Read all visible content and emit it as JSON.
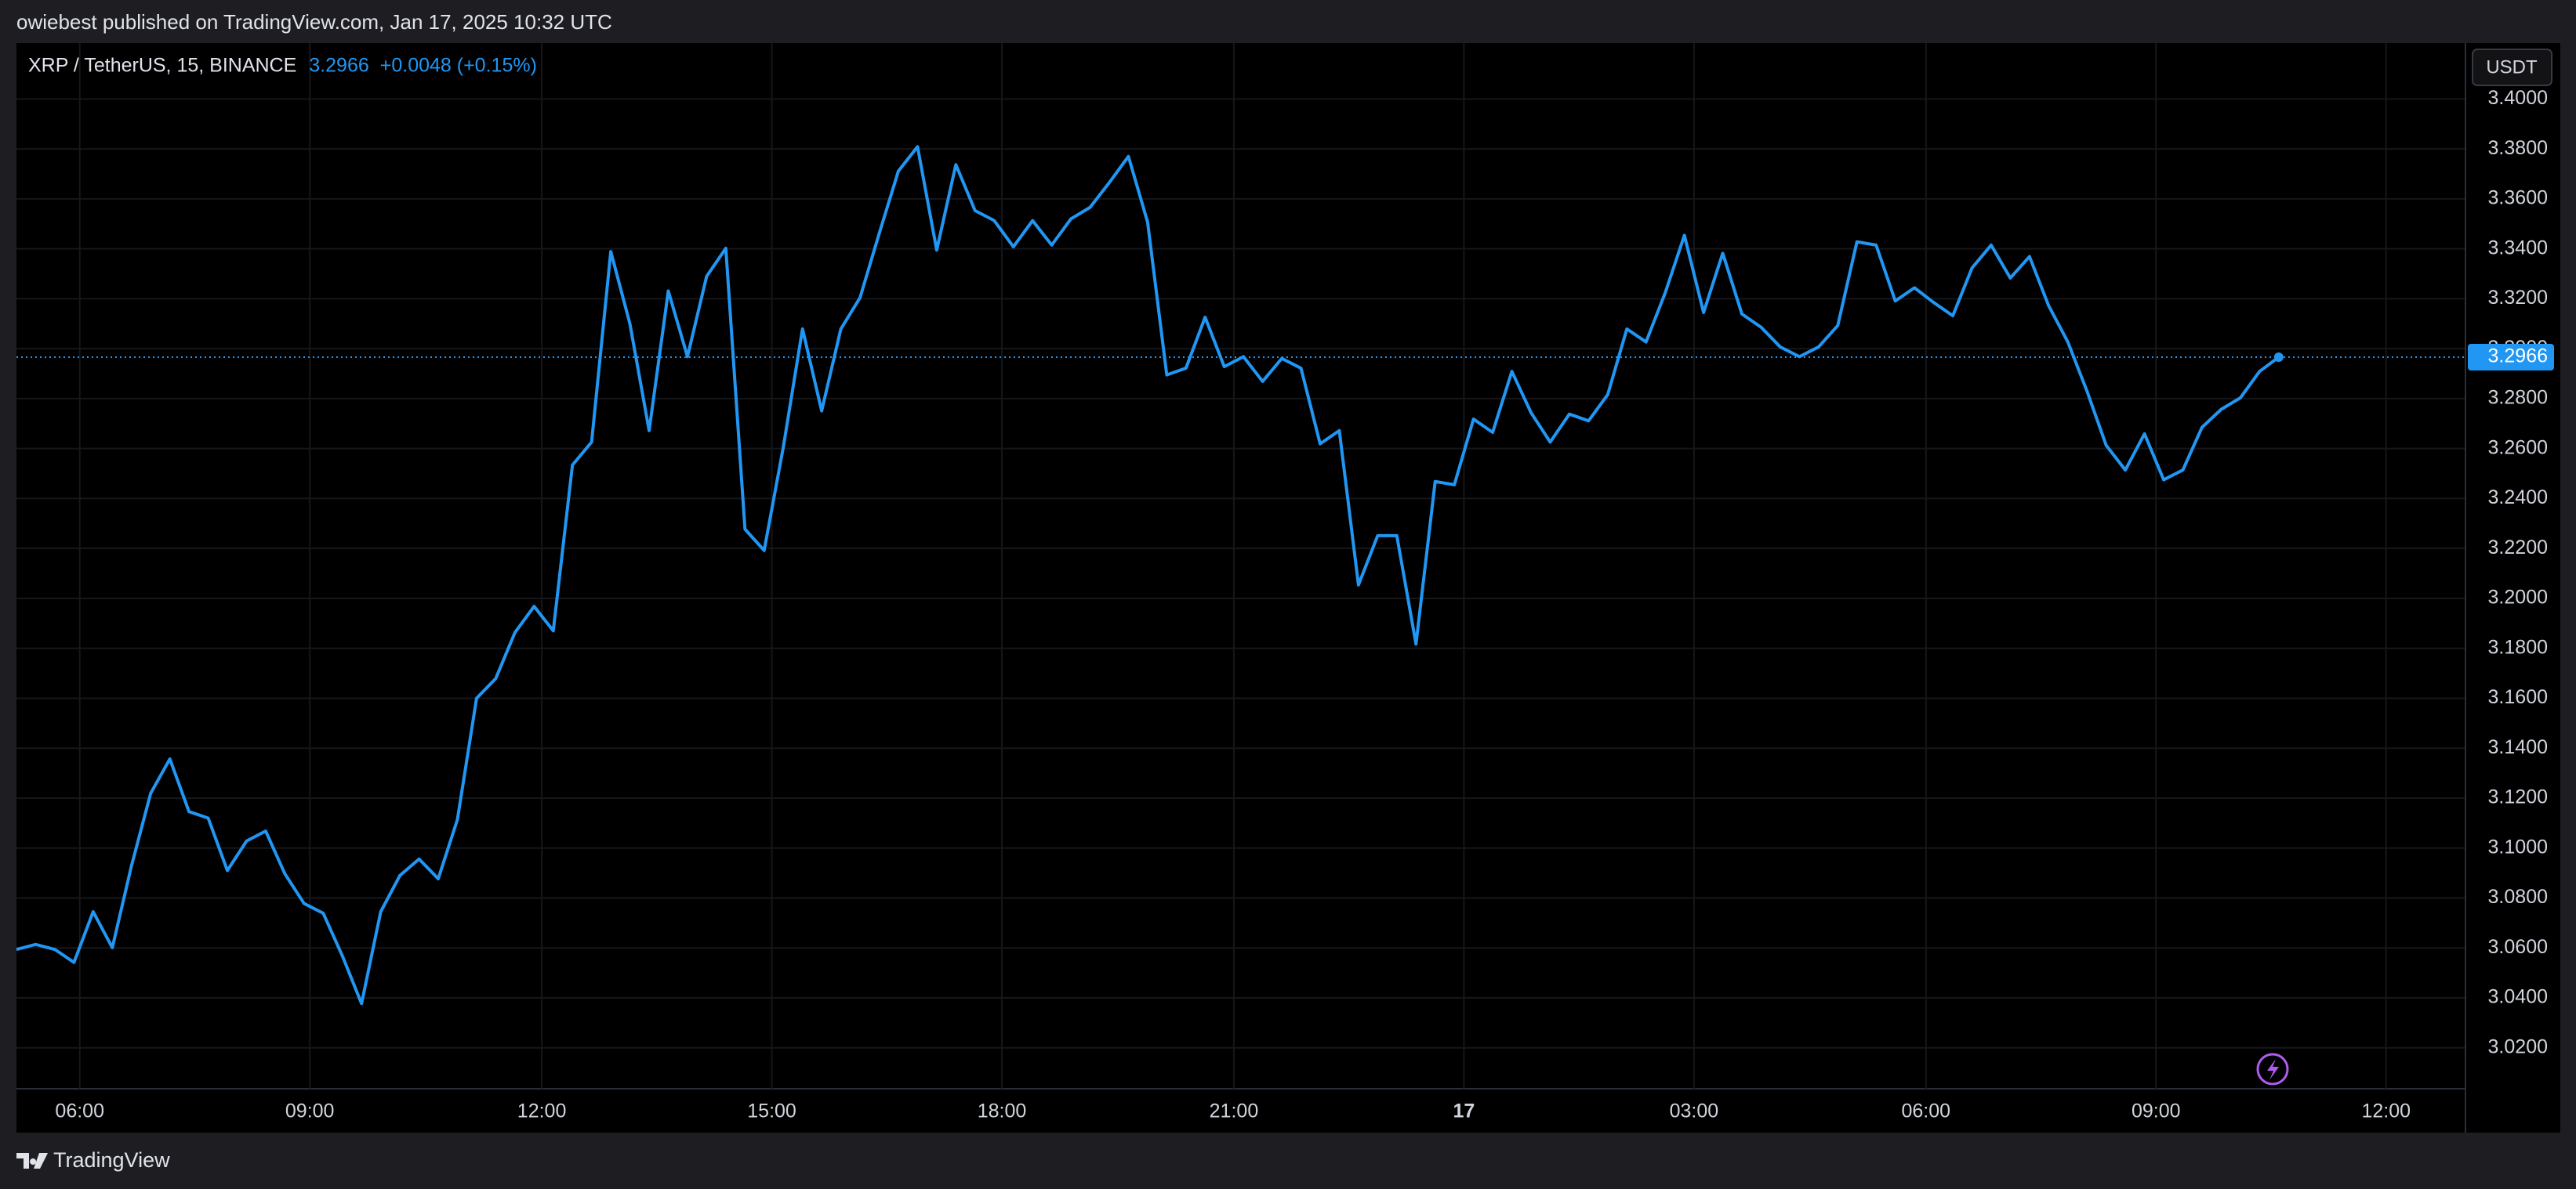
{
  "header": {
    "published": "owiebest published on TradingView.com, Jan 17, 2025 10:32 UTC"
  },
  "footer": {
    "brand": "TradingView"
  },
  "chart_data": {
    "type": "line",
    "symbol": "XRP / TetherUS, 15, BINANCE",
    "last_price": "3.2966",
    "change": "+0.0048 (+0.15%)",
    "currency": "USDT",
    "color": "#2196f3",
    "grid": true,
    "values": [
      3.0594,
      3.0614,
      3.0594,
      3.0542,
      3.0745,
      3.0601,
      3.0929,
      3.1219,
      3.1357,
      3.1146,
      3.112,
      3.091,
      3.1028,
      3.1068,
      3.0897,
      3.0778,
      3.0739,
      3.0568,
      3.0377,
      3.0745,
      3.089,
      3.0956,
      3.0877,
      3.1114,
      3.16,
      3.1679,
      3.1863,
      3.1968,
      3.187,
      3.2534,
      3.2626,
      3.3389,
      3.3099,
      3.2672,
      3.3231,
      3.2968,
      3.329,
      3.3402,
      3.2277,
      3.2192,
      3.2606,
      3.3079,
      3.2751,
      3.3079,
      3.3204,
      3.3461,
      3.3711,
      3.3809,
      3.3395,
      3.3737,
      3.3553,
      3.3513,
      3.3408,
      3.3513,
      3.3415,
      3.352,
      3.3566,
      3.3665,
      3.377,
      3.3507,
      3.2895,
      3.2922,
      3.3126,
      3.2928,
      3.2968,
      3.2869,
      3.2961,
      3.2922,
      3.2619,
      3.2672,
      3.2054,
      3.2251,
      3.2251,
      3.1817,
      3.2468,
      3.2455,
      3.2718,
      3.2665,
      3.2909,
      3.2744,
      3.2626,
      3.2738,
      3.2711,
      3.2816,
      3.3079,
      3.3027,
      3.3224,
      3.3454,
      3.3145,
      3.3382,
      3.3139,
      3.3086,
      3.3007,
      3.2968,
      3.3007,
      3.3093,
      3.3428,
      3.3415,
      3.3191,
      3.3244,
      3.3185,
      3.3132,
      3.3323,
      3.3415,
      3.3283,
      3.3369,
      3.3172,
      3.3027,
      3.283,
      3.2613,
      3.2514,
      3.2659,
      3.2475,
      3.2514,
      3.2685,
      3.2757,
      3.2803,
      3.2909,
      3.2966
    ],
    "xlim": [
      0,
      127.7
    ],
    "xticks": [
      {
        "value": 3.3,
        "label": "06:00"
      },
      {
        "value": 15.3,
        "label": "09:00"
      },
      {
        "value": 27.4,
        "label": "12:00"
      },
      {
        "value": 39.4,
        "label": "15:00"
      },
      {
        "value": 51.4,
        "label": "18:00"
      },
      {
        "value": 63.5,
        "label": "21:00"
      },
      {
        "value": 75.5,
        "label": "17"
      },
      {
        "value": 87.5,
        "label": "03:00"
      },
      {
        "value": 99.6,
        "label": "06:00"
      },
      {
        "value": 111.6,
        "label": "09:00"
      },
      {
        "value": 123.6,
        "label": "12:00"
      }
    ],
    "ylim": [
      3.0036,
      3.4224
    ],
    "yticks": [
      {
        "value": 3.02,
        "label": "3.0200"
      },
      {
        "value": 3.04,
        "label": "3.0400"
      },
      {
        "value": 3.06,
        "label": "3.0600"
      },
      {
        "value": 3.08,
        "label": "3.0800"
      },
      {
        "value": 3.1,
        "label": "3.1000"
      },
      {
        "value": 3.12,
        "label": "3.1200"
      },
      {
        "value": 3.14,
        "label": "3.1400"
      },
      {
        "value": 3.16,
        "label": "3.1600"
      },
      {
        "value": 3.18,
        "label": "3.1800"
      },
      {
        "value": 3.2,
        "label": "3.2000"
      },
      {
        "value": 3.22,
        "label": "3.2200"
      },
      {
        "value": 3.24,
        "label": "3.2400"
      },
      {
        "value": 3.26,
        "label": "3.2600"
      },
      {
        "value": 3.28,
        "label": "3.2800"
      },
      {
        "value": 3.3,
        "label": "3.3000"
      },
      {
        "value": 3.32,
        "label": "3.3200"
      },
      {
        "value": 3.34,
        "label": "3.3400"
      },
      {
        "value": 3.36,
        "label": "3.3600"
      },
      {
        "value": 3.38,
        "label": "3.3800"
      },
      {
        "value": 3.4,
        "label": "3.4000"
      }
    ]
  }
}
